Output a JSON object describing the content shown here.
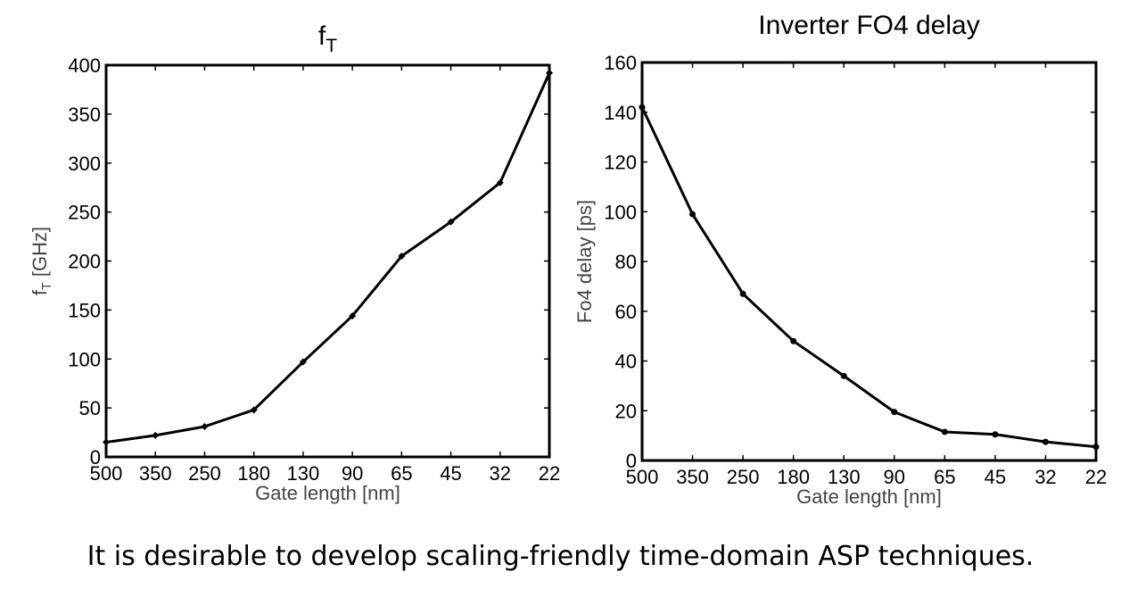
{
  "caption": "It is desirable to develop scaling-friendly time-domain ASP techniques.",
  "chart_data": [
    {
      "type": "line",
      "title": "f_T",
      "title_main": "f",
      "title_sub": "T",
      "xlabel": "Gate length [nm]",
      "ylabel": "f_T [GHz]",
      "ylabel_main": "f",
      "ylabel_sub": "T",
      "ylabel_rest": " [GHz]",
      "categories": [
        "500",
        "350",
        "250",
        "180",
        "130",
        "90",
        "65",
        "45",
        "32",
        "22"
      ],
      "ylim": [
        0,
        400
      ],
      "yticks": [
        0,
        50,
        100,
        150,
        200,
        250,
        300,
        350,
        400
      ],
      "series": [
        {
          "values": [
            15,
            22,
            31,
            48,
            97,
            144,
            205,
            240,
            280,
            392
          ]
        }
      ],
      "marker": "diamond",
      "grid": false,
      "line_color": "#000000"
    },
    {
      "type": "line",
      "title": "Inverter FO4 delay",
      "xlabel": "Gate length [nm]",
      "ylabel": "Fo4 delay [ps]",
      "categories": [
        "500",
        "350",
        "250",
        "180",
        "130",
        "90",
        "65",
        "45",
        "32",
        "22"
      ],
      "ylim": [
        0,
        160
      ],
      "yticks": [
        0,
        20,
        40,
        60,
        80,
        100,
        120,
        140,
        160
      ],
      "series": [
        {
          "values": [
            142,
            99,
            67,
            48,
            34,
            19.5,
            11.5,
            10.5,
            7.5,
            5.5
          ]
        }
      ],
      "marker": "circle",
      "grid": false,
      "line_color": "#000000"
    }
  ]
}
